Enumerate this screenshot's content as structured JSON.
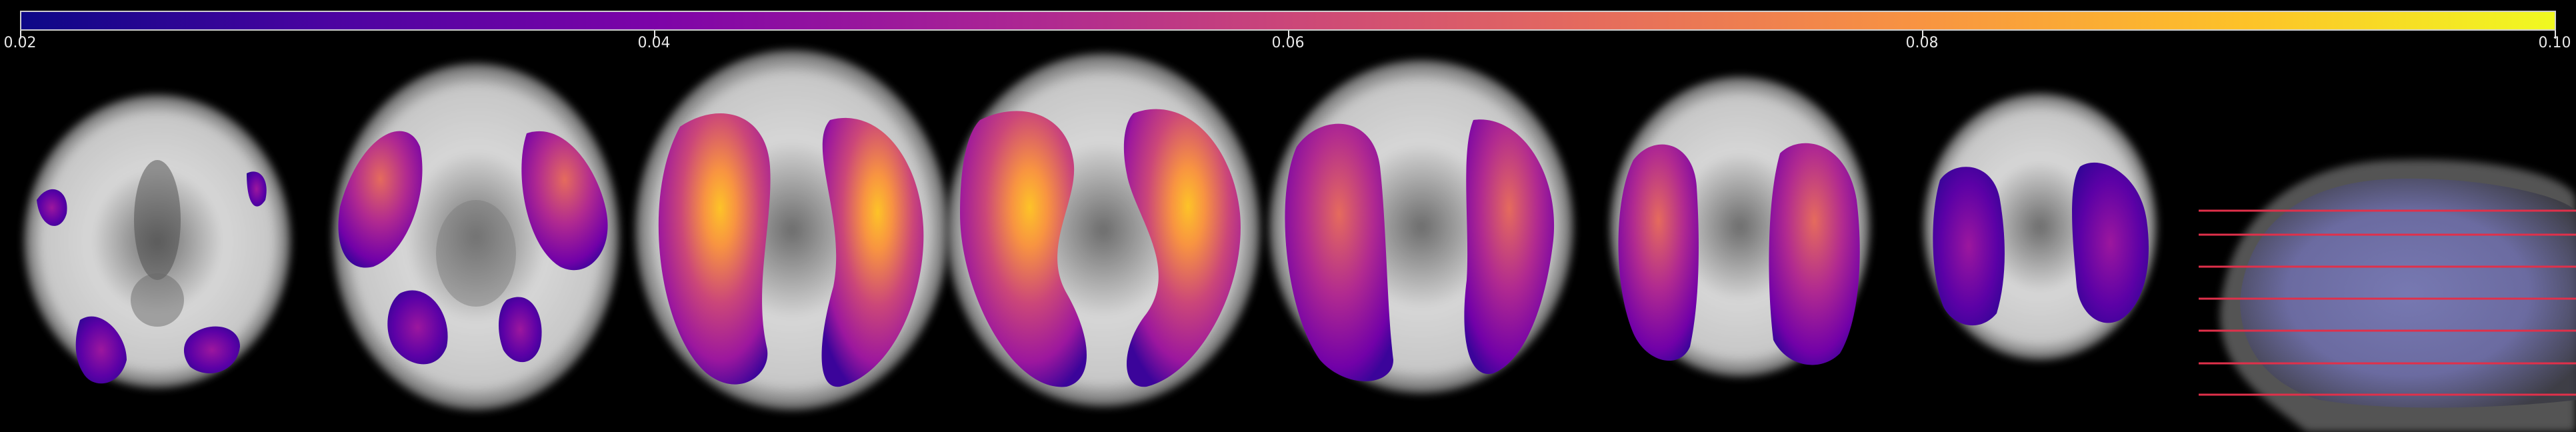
{
  "colorbar": {
    "min_label": "0.02",
    "ticks": [
      "0.02",
      "0.04",
      "0.06",
      "0.08",
      "0.10"
    ],
    "colormap": "plasma",
    "stops": [
      "#0d0887",
      "#4b03a1",
      "#7d03a8",
      "#a82296",
      "#cb4679",
      "#e56b5d",
      "#f89441",
      "#fdc328",
      "#f0f921"
    ]
  },
  "panels": [
    {
      "name": "axial-slice-1",
      "type": "brain-axial"
    },
    {
      "name": "axial-slice-2",
      "type": "brain-axial"
    },
    {
      "name": "axial-slice-3",
      "type": "brain-axial"
    },
    {
      "name": "axial-slice-4",
      "type": "brain-axial"
    },
    {
      "name": "axial-slice-5",
      "type": "brain-axial"
    },
    {
      "name": "axial-slice-6",
      "type": "brain-axial"
    },
    {
      "name": "axial-slice-7",
      "type": "brain-axial"
    },
    {
      "name": "sagittal-reference",
      "type": "brain-sagittal-with-slice-lines"
    }
  ],
  "colors": {
    "background": "#000000",
    "brain_gray": "#bdbdbd",
    "slice_line": "#e0304a"
  }
}
